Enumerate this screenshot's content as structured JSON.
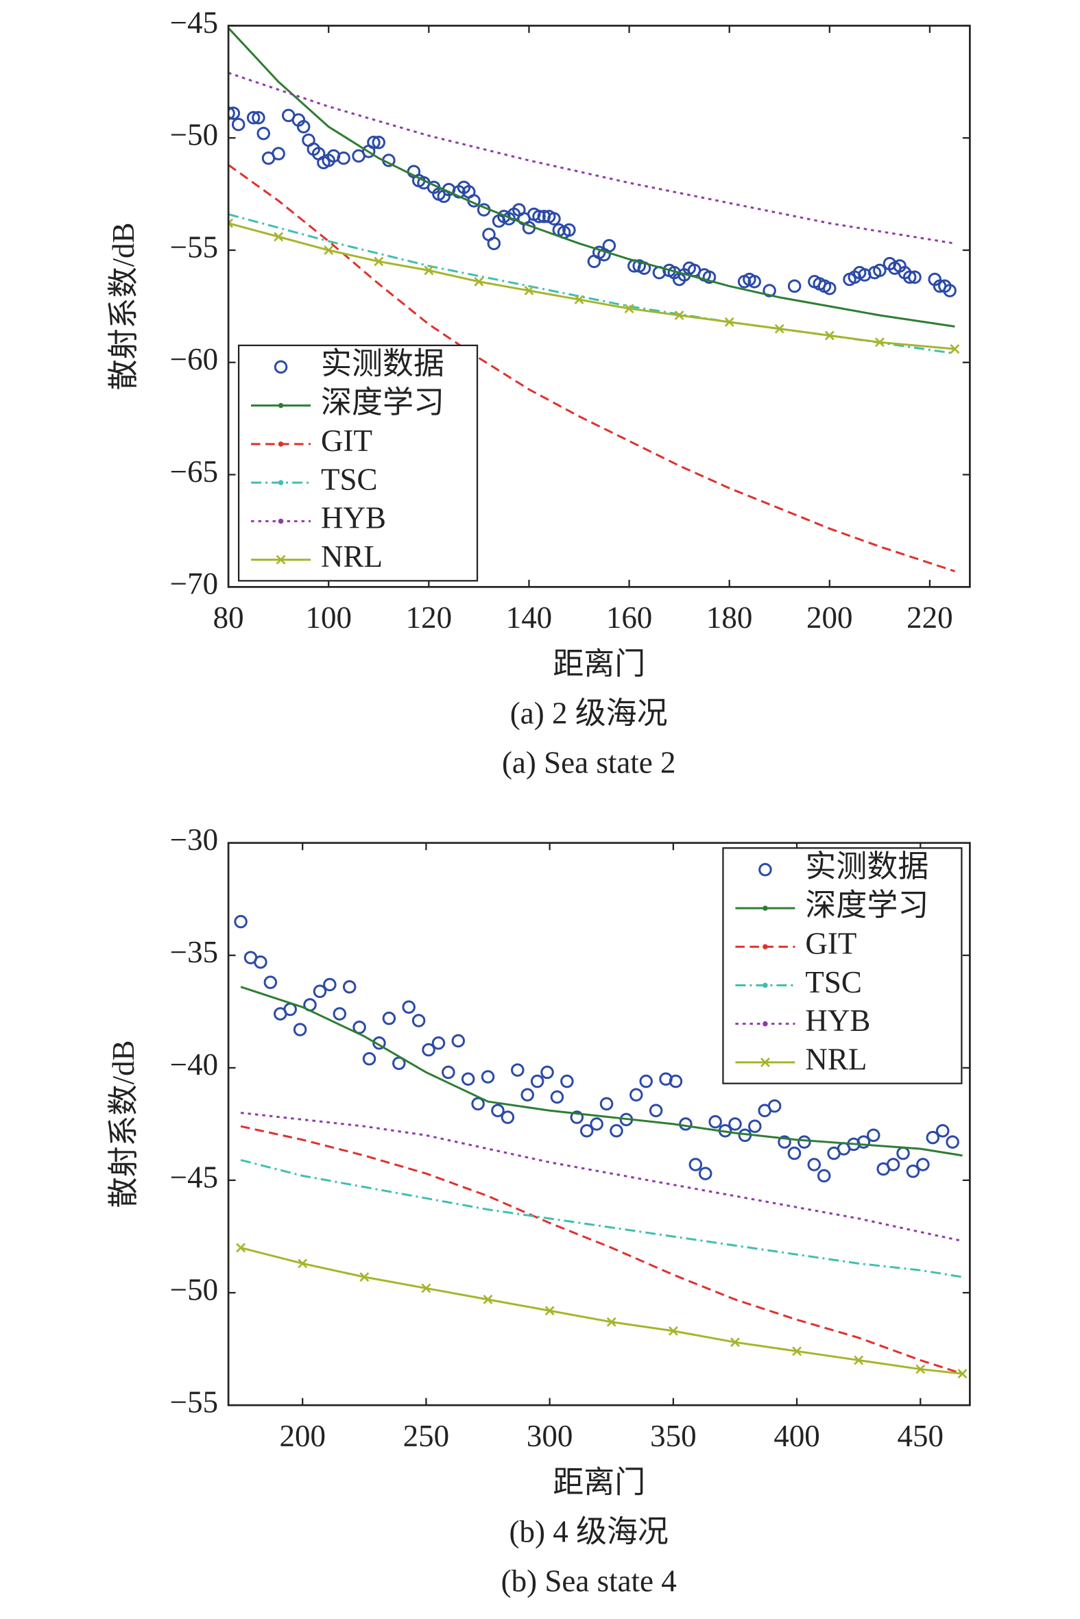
{
  "chart_data": [
    {
      "type": "line",
      "ylabel": "散射系数/dB",
      "xlabel": "距离门",
      "caption": "(a) 2 级海况",
      "caption_en": "(a) Sea state 2",
      "xlim": [
        80,
        228
      ],
      "xticks": [
        80,
        100,
        120,
        140,
        160,
        180,
        200,
        220
      ],
      "ylim": [
        -70,
        -45
      ],
      "yticks": [
        {
          "value": -70,
          "label": "−70"
        },
        {
          "value": -65,
          "label": "−65"
        },
        {
          "value": -60,
          "label": "−60"
        },
        {
          "value": -55,
          "label": "−55"
        },
        {
          "value": -50,
          "label": "−50"
        },
        {
          "value": -45,
          "label": "−45"
        }
      ],
      "legend": "lower left",
      "series": [
        {
          "name": "实测数据",
          "color": "#2b4aa8",
          "line_style": "none",
          "marker": "circle",
          "x": [
            80,
            81,
            82,
            85,
            86,
            87,
            88,
            90,
            92,
            94,
            95,
            96,
            97,
            98,
            99,
            100,
            101,
            103,
            106,
            108,
            109,
            110,
            112,
            117,
            118,
            119,
            121,
            122,
            123,
            124,
            126,
            127,
            128,
            129,
            131,
            132,
            133,
            134,
            135,
            136,
            137,
            138,
            139,
            140,
            141,
            142,
            143,
            144,
            145,
            146,
            147,
            148,
            153,
            154,
            155,
            156,
            161,
            162,
            163,
            166,
            168,
            169,
            170,
            171,
            172,
            173,
            175,
            176,
            183,
            184,
            185,
            188,
            193,
            197,
            198,
            199,
            200,
            204,
            205,
            206,
            207,
            209,
            210,
            212,
            213,
            214,
            215,
            216,
            217,
            221,
            222,
            223,
            224
          ],
          "values": [
            -48.9,
            -48.9,
            -49.4,
            -49.1,
            -49.1,
            -49.8,
            -50.9,
            -50.7,
            -49.0,
            -49.2,
            -49.5,
            -50.1,
            -50.5,
            -50.7,
            -51.1,
            -51.0,
            -50.8,
            -50.9,
            -50.8,
            -50.6,
            -50.2,
            -50.2,
            -51.0,
            -51.5,
            -51.9,
            -52.0,
            -52.2,
            -52.5,
            -52.6,
            -52.3,
            -52.4,
            -52.2,
            -52.4,
            -52.8,
            -53.2,
            -54.3,
            -54.7,
            -53.7,
            -53.5,
            -53.6,
            -53.4,
            -53.2,
            -53.6,
            -54.0,
            -53.4,
            -53.5,
            -53.5,
            -53.5,
            -53.6,
            -54.1,
            -54.2,
            -54.1,
            -55.5,
            -55.1,
            -55.2,
            -54.8,
            -55.7,
            -55.7,
            -55.8,
            -56.0,
            -55.9,
            -56.0,
            -56.3,
            -56.1,
            -55.8,
            -55.9,
            -56.1,
            -56.2,
            -56.4,
            -56.3,
            -56.4,
            -56.8,
            -56.6,
            -56.4,
            -56.5,
            -56.6,
            -56.7,
            -56.3,
            -56.2,
            -56.0,
            -56.1,
            -56.0,
            -55.9,
            -55.6,
            -55.8,
            -55.7,
            -56.0,
            -56.2,
            -56.2,
            -56.3,
            -56.6,
            -56.6,
            -56.8
          ]
        },
        {
          "name": "深度学习",
          "color": "#2e7d32",
          "line_style": "solid",
          "marker": "none",
          "x": [
            80,
            90,
            100,
            110,
            120,
            130,
            140,
            150,
            160,
            170,
            180,
            190,
            200,
            210,
            225
          ],
          "values": [
            -45.1,
            -47.5,
            -49.5,
            -50.9,
            -52.0,
            -53.0,
            -53.9,
            -54.7,
            -55.4,
            -56.0,
            -56.6,
            -57.1,
            -57.5,
            -57.9,
            -58.4
          ]
        },
        {
          "name": "GIT",
          "color": "#e0302c",
          "line_style": "dashed",
          "marker": "none",
          "x": [
            80,
            90,
            100,
            110,
            120,
            130,
            140,
            150,
            160,
            170,
            180,
            190,
            200,
            210,
            225
          ],
          "values": [
            -51.2,
            -52.8,
            -54.6,
            -56.5,
            -58.3,
            -59.8,
            -61.2,
            -62.4,
            -63.5,
            -64.6,
            -65.6,
            -66.5,
            -67.4,
            -68.2,
            -69.3
          ]
        },
        {
          "name": "TSC",
          "color": "#3fbfb0",
          "line_style": "dashdot",
          "marker": "none",
          "x": [
            80,
            100,
            120,
            140,
            160,
            180,
            200,
            225
          ],
          "values": [
            -53.4,
            -54.6,
            -55.7,
            -56.6,
            -57.5,
            -58.2,
            -58.8,
            -59.6
          ]
        },
        {
          "name": "HYB",
          "color": "#8e3ba8",
          "line_style": "dotted",
          "marker": "none",
          "x": [
            80,
            100,
            120,
            140,
            160,
            180,
            200,
            225
          ],
          "values": [
            -47.1,
            -48.6,
            -49.9,
            -51.0,
            -52.0,
            -52.9,
            -53.8,
            -54.7
          ]
        },
        {
          "name": "NRL",
          "color": "#a6b52a",
          "line_style": "solid",
          "marker": "x",
          "x": [
            80,
            90,
            100,
            110,
            120,
            130,
            140,
            150,
            160,
            170,
            180,
            190,
            200,
            210,
            225
          ],
          "values": [
            -53.8,
            -54.4,
            -55.0,
            -55.5,
            -55.9,
            -56.4,
            -56.8,
            -57.2,
            -57.6,
            -57.9,
            -58.2,
            -58.5,
            -58.8,
            -59.1,
            -59.4
          ]
        }
      ]
    },
    {
      "type": "line",
      "ylabel": "散射系数/dB",
      "xlabel": "距离门",
      "caption": "(b) 4 级海况",
      "caption_en": "(b) Sea state 4",
      "xlim": [
        170,
        470
      ],
      "xticks": [
        200,
        250,
        300,
        350,
        400,
        450
      ],
      "ylim": [
        -55,
        -30
      ],
      "yticks": [
        {
          "value": -55,
          "label": "−55"
        },
        {
          "value": -50,
          "label": "−50"
        },
        {
          "value": -45,
          "label": "−45"
        },
        {
          "value": -40,
          "label": "−40"
        },
        {
          "value": -35,
          "label": "−35"
        },
        {
          "value": -30,
          "label": "−30"
        }
      ],
      "legend": "upper right",
      "series": [
        {
          "name": "实测数据",
          "color": "#2b4aa8",
          "line_style": "none",
          "marker": "circle",
          "x": [
            175,
            179,
            183,
            187,
            191,
            195,
            199,
            203,
            207,
            211,
            215,
            219,
            223,
            227,
            231,
            235,
            239,
            243,
            247,
            251,
            255,
            259,
            263,
            267,
            271,
            275,
            279,
            283,
            287,
            291,
            295,
            299,
            303,
            307,
            311,
            315,
            319,
            323,
            327,
            331,
            335,
            339,
            343,
            347,
            351,
            355,
            359,
            363,
            367,
            371,
            375,
            379,
            383,
            387,
            391,
            395,
            399,
            403,
            407,
            411,
            415,
            419,
            423,
            427,
            431,
            435,
            439,
            443,
            447,
            451,
            455,
            459,
            463
          ],
          "values": [
            -33.5,
            -35.1,
            -35.3,
            -36.2,
            -37.6,
            -37.4,
            -38.3,
            -37.2,
            -36.6,
            -36.3,
            -37.6,
            -36.4,
            -38.2,
            -39.6,
            -38.9,
            -37.8,
            -39.8,
            -37.3,
            -37.9,
            -39.2,
            -38.9,
            -40.2,
            -38.8,
            -40.5,
            -41.6,
            -40.4,
            -41.9,
            -42.2,
            -40.1,
            -41.2,
            -40.6,
            -40.2,
            -41.3,
            -40.6,
            -42.2,
            -42.8,
            -42.5,
            -41.6,
            -42.8,
            -42.3,
            -41.2,
            -40.6,
            -41.9,
            -40.5,
            -40.6,
            -42.5,
            -44.3,
            -44.7,
            -42.4,
            -42.8,
            -42.5,
            -43.0,
            -42.6,
            -41.9,
            -41.7,
            -43.3,
            -43.8,
            -43.3,
            -44.3,
            -44.8,
            -43.8,
            -43.6,
            -43.4,
            -43.3,
            -43.0,
            -44.5,
            -44.3,
            -43.8,
            -44.6,
            -44.3,
            -43.1,
            -42.8,
            -43.3
          ]
        },
        {
          "name": "深度学习",
          "color": "#2e7d32",
          "line_style": "solid",
          "marker": "none",
          "x": [
            175,
            200,
            225,
            250,
            275,
            300,
            325,
            350,
            375,
            400,
            425,
            450,
            467
          ],
          "values": [
            -36.4,
            -37.3,
            -38.6,
            -40.2,
            -41.5,
            -41.9,
            -42.2,
            -42.5,
            -42.9,
            -43.2,
            -43.4,
            -43.6,
            -43.9
          ]
        },
        {
          "name": "GIT",
          "color": "#e0302c",
          "line_style": "dashed",
          "marker": "none",
          "x": [
            175,
            200,
            225,
            250,
            275,
            300,
            325,
            350,
            375,
            400,
            425,
            450,
            467
          ],
          "values": [
            -42.6,
            -43.2,
            -43.9,
            -44.7,
            -45.7,
            -46.9,
            -48.0,
            -49.2,
            -50.3,
            -51.2,
            -52.0,
            -53.0,
            -53.6
          ]
        },
        {
          "name": "TSC",
          "color": "#3fbfb0",
          "line_style": "dashdot",
          "marker": "none",
          "x": [
            175,
            200,
            225,
            250,
            275,
            300,
            325,
            350,
            375,
            400,
            425,
            450,
            467
          ],
          "values": [
            -44.1,
            -44.8,
            -45.3,
            -45.8,
            -46.3,
            -46.7,
            -47.1,
            -47.5,
            -47.9,
            -48.3,
            -48.7,
            -49.0,
            -49.3
          ]
        },
        {
          "name": "HYB",
          "color": "#8e3ba8",
          "line_style": "dotted",
          "marker": "none",
          "x": [
            175,
            200,
            225,
            250,
            275,
            300,
            325,
            350,
            375,
            400,
            425,
            450,
            467
          ],
          "values": [
            -42.0,
            -42.3,
            -42.6,
            -43.0,
            -43.6,
            -44.2,
            -44.7,
            -45.2,
            -45.7,
            -46.2,
            -46.7,
            -47.3,
            -47.7
          ]
        },
        {
          "name": "NRL",
          "color": "#a6b52a",
          "line_style": "solid",
          "marker": "x",
          "x": [
            175,
            200,
            225,
            250,
            275,
            300,
            325,
            350,
            375,
            400,
            425,
            450,
            467
          ],
          "values": [
            -48.0,
            -48.7,
            -49.3,
            -49.8,
            -50.3,
            -50.8,
            -51.3,
            -51.7,
            -52.2,
            -52.6,
            -53.0,
            -53.4,
            -53.6
          ]
        }
      ]
    }
  ]
}
